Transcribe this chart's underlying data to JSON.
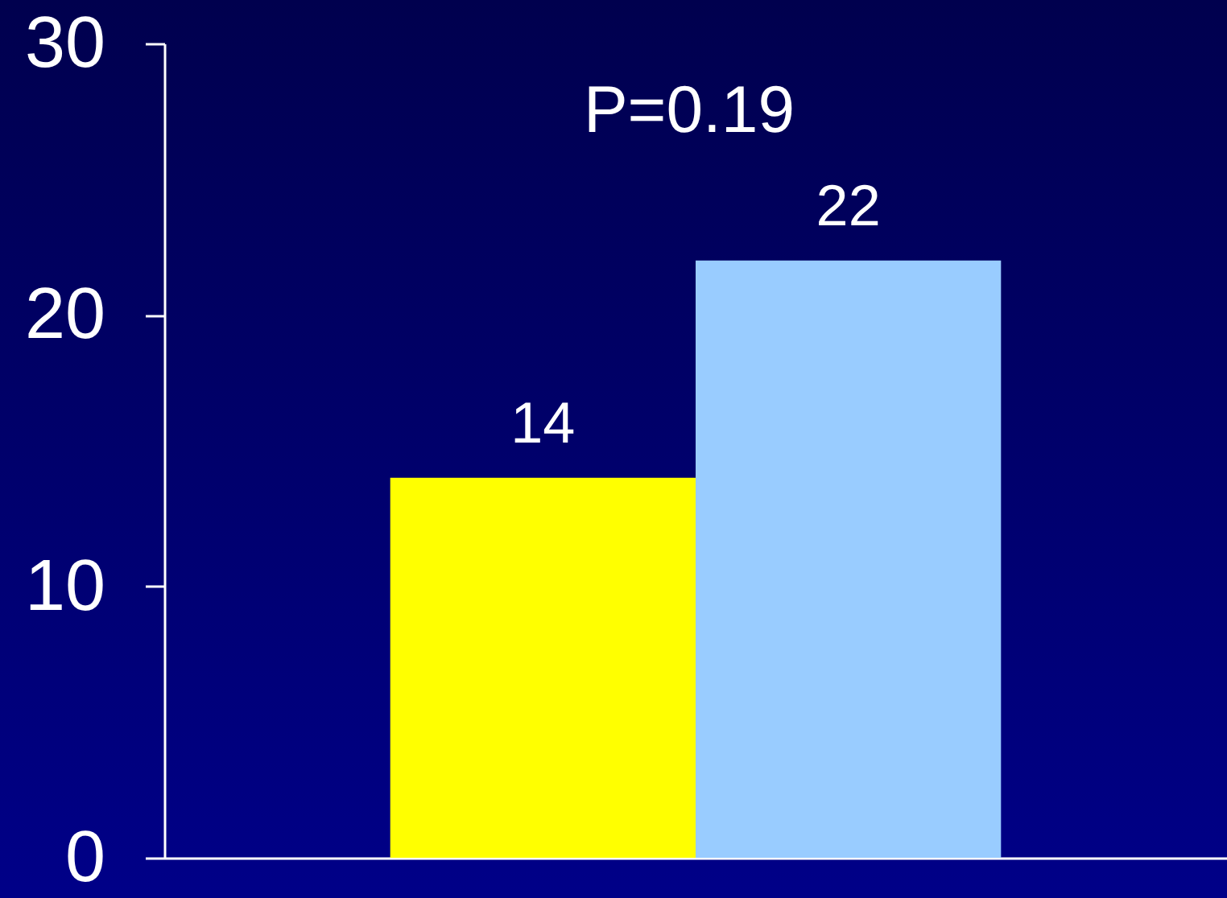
{
  "chart_data": {
    "type": "bar",
    "categories": [
      null,
      null
    ],
    "values": [
      14,
      22
    ],
    "colors": [
      "#ffff00",
      "#99ccff"
    ],
    "ylim": [
      0,
      30
    ],
    "yticks": [
      0,
      10,
      20,
      30
    ],
    "grid": false,
    "legend": false,
    "data_labels": true,
    "annotations": [
      "P=0.19"
    ]
  }
}
